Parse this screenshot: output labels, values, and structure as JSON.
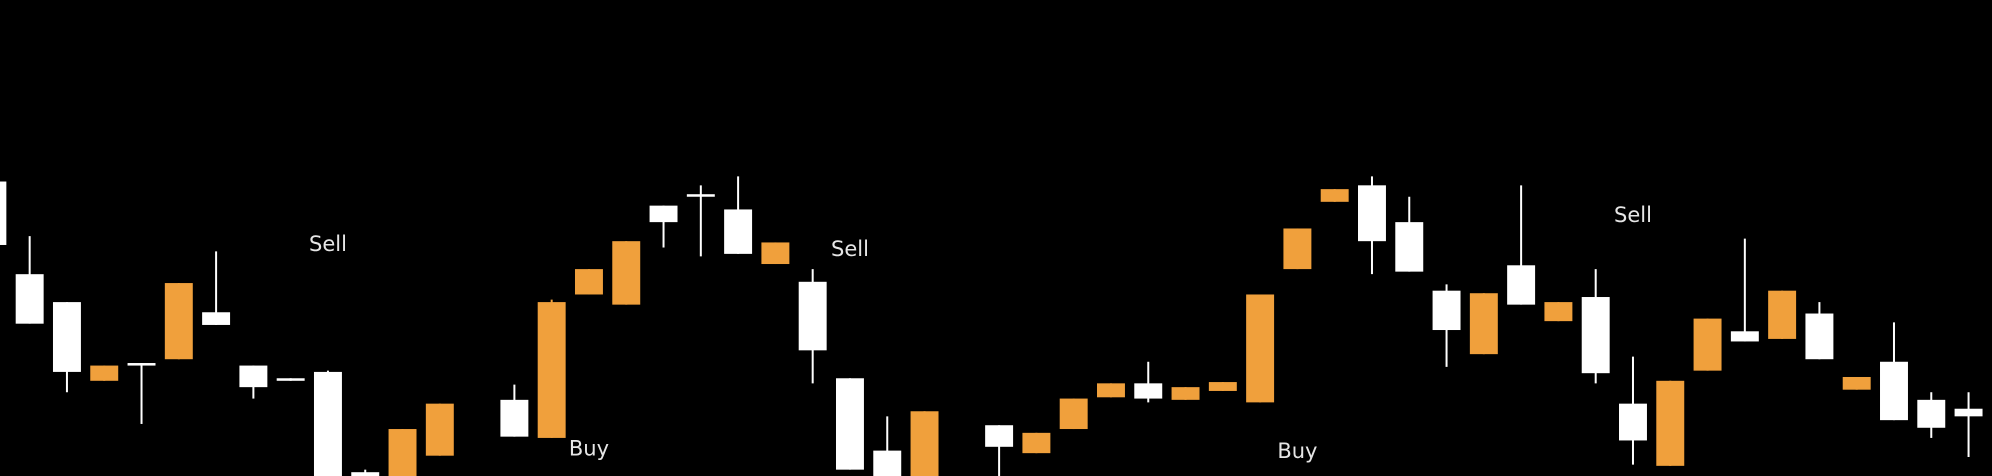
{
  "chart_data": {
    "type": "candlestick",
    "up_color": "#f0a03c",
    "down_color": "#ffffff",
    "ylim": [
      0,
      375
    ],
    "candles": [
      {
        "open": 232,
        "high": 232,
        "low": 182,
        "close": 182
      },
      {
        "open": 159,
        "high": 189,
        "low": 120,
        "close": 120
      },
      {
        "open": 137,
        "high": 137,
        "low": 66,
        "close": 82
      },
      {
        "open": 75,
        "high": 87,
        "low": 75,
        "close": 87
      },
      {
        "open": 89,
        "high": 89,
        "low": 41,
        "close": 87
      },
      {
        "open": 92,
        "high": 152,
        "low": 92,
        "close": 152
      },
      {
        "open": 129,
        "high": 177,
        "low": 119,
        "close": 119
      },
      {
        "open": 87,
        "high": 87,
        "low": 61,
        "close": 70
      },
      {
        "open": 77,
        "high": 77,
        "low": 75,
        "close": 75
      },
      {
        "open": 82,
        "high": 83,
        "low": -10,
        "close": -10
      },
      {
        "open": 3,
        "high": 5,
        "low": -10,
        "close": -10
      },
      {
        "open": -10,
        "high": 37,
        "low": -10,
        "close": 37
      },
      {
        "open": 16,
        "high": 57,
        "low": 16,
        "close": 57
      },
      null,
      {
        "open": 60,
        "high": 72,
        "low": 31,
        "close": 31
      },
      {
        "open": 30,
        "high": 139,
        "low": 30,
        "close": 137
      },
      {
        "open": 143,
        "high": 163,
        "low": 143,
        "close": 163
      },
      {
        "open": 135,
        "high": 185,
        "low": 135,
        "close": 185
      },
      {
        "open": 213,
        "high": 213,
        "low": 180,
        "close": 200
      },
      {
        "open": 222,
        "high": 229,
        "low": 173,
        "close": 220
      },
      {
        "open": 210,
        "high": 236,
        "low": 175,
        "close": 175
      },
      {
        "open": 167,
        "high": 184,
        "low": 167,
        "close": 184
      },
      {
        "open": 153,
        "high": 163,
        "low": 73,
        "close": 99
      },
      {
        "open": 77,
        "high": 77,
        "low": 5,
        "close": 5
      },
      {
        "open": 20,
        "high": 47,
        "low": -10,
        "close": -10
      },
      {
        "open": -10,
        "high": 51,
        "low": -10,
        "close": 51
      },
      null,
      {
        "open": 40,
        "high": 40,
        "low": -10,
        "close": 23
      },
      {
        "open": 18,
        "high": 34,
        "low": 18,
        "close": 34
      },
      {
        "open": 37,
        "high": 61,
        "low": 37,
        "close": 61
      },
      {
        "open": 62,
        "high": 73,
        "low": 62,
        "close": 73
      },
      {
        "open": 73,
        "high": 90,
        "low": 58,
        "close": 61
      },
      {
        "open": 60,
        "high": 70,
        "low": 60,
        "close": 70
      },
      {
        "open": 67,
        "high": 74,
        "low": 67,
        "close": 74
      },
      {
        "open": 58,
        "high": 143,
        "low": 58,
        "close": 143
      },
      {
        "open": 163,
        "high": 195,
        "low": 163,
        "close": 195
      },
      {
        "open": 216,
        "high": 226,
        "low": 216,
        "close": 226
      },
      {
        "open": 229,
        "high": 236,
        "low": 159,
        "close": 185
      },
      {
        "open": 200,
        "high": 220,
        "low": 161,
        "close": 161
      },
      {
        "open": 146,
        "high": 151,
        "low": 86,
        "close": 115
      },
      {
        "open": 96,
        "high": 144,
        "low": 96,
        "close": 144
      },
      {
        "open": 166,
        "high": 229,
        "low": 135,
        "close": 135
      },
      {
        "open": 122,
        "high": 137,
        "low": 122,
        "close": 137
      },
      {
        "open": 141,
        "high": 163,
        "low": 73,
        "close": 81
      },
      {
        "open": 57,
        "high": 94,
        "low": 9,
        "close": 28
      },
      {
        "open": 8,
        "high": 75,
        "low": 8,
        "close": 75
      },
      {
        "open": 83,
        "high": 124,
        "low": 83,
        "close": 124
      },
      {
        "open": 114,
        "high": 187,
        "low": 106,
        "close": 106
      },
      {
        "open": 108,
        "high": 146,
        "low": 108,
        "close": 146
      },
      {
        "open": 128,
        "high": 137,
        "low": 92,
        "close": 92
      },
      {
        "open": 68,
        "high": 78,
        "low": 68,
        "close": 78
      },
      {
        "open": 90,
        "high": 121,
        "low": 44,
        "close": 44
      },
      {
        "open": 60,
        "high": 66,
        "low": 30,
        "close": 38
      },
      {
        "open": 53,
        "high": 66,
        "low": 15,
        "close": 47
      }
    ],
    "annotations": [
      {
        "text": "Sell",
        "candle": 9,
        "y": 182
      },
      {
        "text": "Buy",
        "candle": 16,
        "y": 21
      },
      {
        "text": "Sell",
        "candle": 23,
        "y": 178
      },
      {
        "text": "Buy",
        "candle": 35,
        "y": 19
      },
      {
        "text": "Sell",
        "candle": 44,
        "y": 205
      }
    ]
  }
}
